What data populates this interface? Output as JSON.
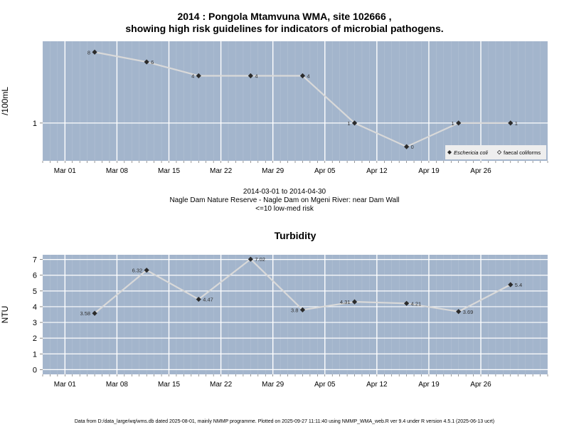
{
  "colors": {
    "panel_bg": "#a3b5cc",
    "grid": "#ffffff",
    "line": "#d9d9d9",
    "marker": "#2b2b2b"
  },
  "header": {
    "title_line1": "2014 : Pongola Mtamvuna WMA, site 102666 ,",
    "title_line2": "showing high risk guidelines for indicators of microbial pathogens."
  },
  "info": {
    "date_range": "2014-03-01 to 2014-04-30",
    "site_name": "Nagle Dam Nature Reserve - Nagle Dam on Mgeni River: near Dam Wall",
    "risk_note": "<=10 low-med risk"
  },
  "footer": {
    "note": "Data from D:/data_large/wq/wms.db dated 2025-08-01, mainly NMMP programme. Plotted on 2025-09-27 11:11:40 using NMMP_WMA_web.R ver 9.4 under R version 4.5.1 (2025-06-13 ucrt)"
  },
  "chart_data": [
    {
      "type": "line",
      "title": "",
      "xlabel": "",
      "ylabel": "/100mL",
      "y_scale": "log",
      "xlim": [
        "2014-02-26",
        "2014-05-05"
      ],
      "ylim": [
        0.33,
        11
      ],
      "x_ticks": [
        "2014-03-01",
        "2014-03-08",
        "2014-03-15",
        "2014-03-22",
        "2014-03-29",
        "2014-04-05",
        "2014-04-12",
        "2014-04-19",
        "2014-04-26"
      ],
      "x_tick_labels": [
        "Mar 01",
        "Mar 08",
        "Mar 15",
        "Mar 22",
        "Mar 29",
        "Apr 05",
        "Apr 12",
        "Apr 19",
        "Apr 26"
      ],
      "y_ticks": [
        1
      ],
      "y_tick_labels": [
        "1"
      ],
      "grid": true,
      "legend_position": "bottom-right",
      "series": [
        {
          "name": "Eschericia coli",
          "marker": "filled-diamond",
          "x": [
            "2014-03-05",
            "2014-03-12",
            "2014-03-19",
            "2014-03-26",
            "2014-04-02",
            "2014-04-09",
            "2014-04-16",
            "2014-04-23",
            "2014-04-30"
          ],
          "values": [
            8,
            6,
            4,
            4,
            4,
            1,
            0,
            1,
            1
          ],
          "labels": [
            "8",
            "6",
            "4",
            "4",
            "4",
            "1",
            "0",
            "1",
            "1"
          ],
          "label_side": [
            "left",
            "right",
            "left",
            "right",
            "right",
            "left",
            "right",
            "left",
            "right"
          ]
        }
      ],
      "legend": [
        {
          "label": "Eschericia coli",
          "marker": "filled-diamond"
        },
        {
          "label": "faecal coliforms",
          "marker": "open-diamond"
        }
      ]
    },
    {
      "type": "line",
      "title": "Turbidity",
      "xlabel": "",
      "ylabel": "NTU",
      "xlim": [
        "2014-02-26",
        "2014-05-05"
      ],
      "ylim": [
        -0.3,
        7.3
      ],
      "x_ticks": [
        "2014-03-01",
        "2014-03-08",
        "2014-03-15",
        "2014-03-22",
        "2014-03-29",
        "2014-04-05",
        "2014-04-12",
        "2014-04-19",
        "2014-04-26"
      ],
      "x_tick_labels": [
        "Mar 01",
        "Mar 08",
        "Mar 15",
        "Mar 22",
        "Mar 29",
        "Apr 05",
        "Apr 12",
        "Apr 19",
        "Apr 26"
      ],
      "y_ticks": [
        0,
        1,
        2,
        3,
        4,
        5,
        6,
        7
      ],
      "y_tick_labels": [
        "0",
        "1",
        "2",
        "3",
        "4",
        "5",
        "6",
        "7"
      ],
      "grid": true,
      "series": [
        {
          "name": "",
          "marker": "filled-diamond",
          "x": [
            "2014-03-05",
            "2014-03-12",
            "2014-03-19",
            "2014-03-26",
            "2014-04-02",
            "2014-04-09",
            "2014-04-16",
            "2014-04-23",
            "2014-04-30"
          ],
          "values": [
            3.58,
            6.32,
            4.47,
            7.02,
            3.8,
            4.31,
            4.21,
            3.69,
            5.4
          ],
          "labels": [
            "3.58",
            "6.32",
            "4.47",
            "7.02",
            "3.8",
            "4.31",
            "4.21",
            "3.69",
            "5.4"
          ],
          "label_side": [
            "left",
            "left",
            "right",
            "right",
            "left",
            "left",
            "right",
            "right",
            "right"
          ]
        }
      ]
    }
  ]
}
